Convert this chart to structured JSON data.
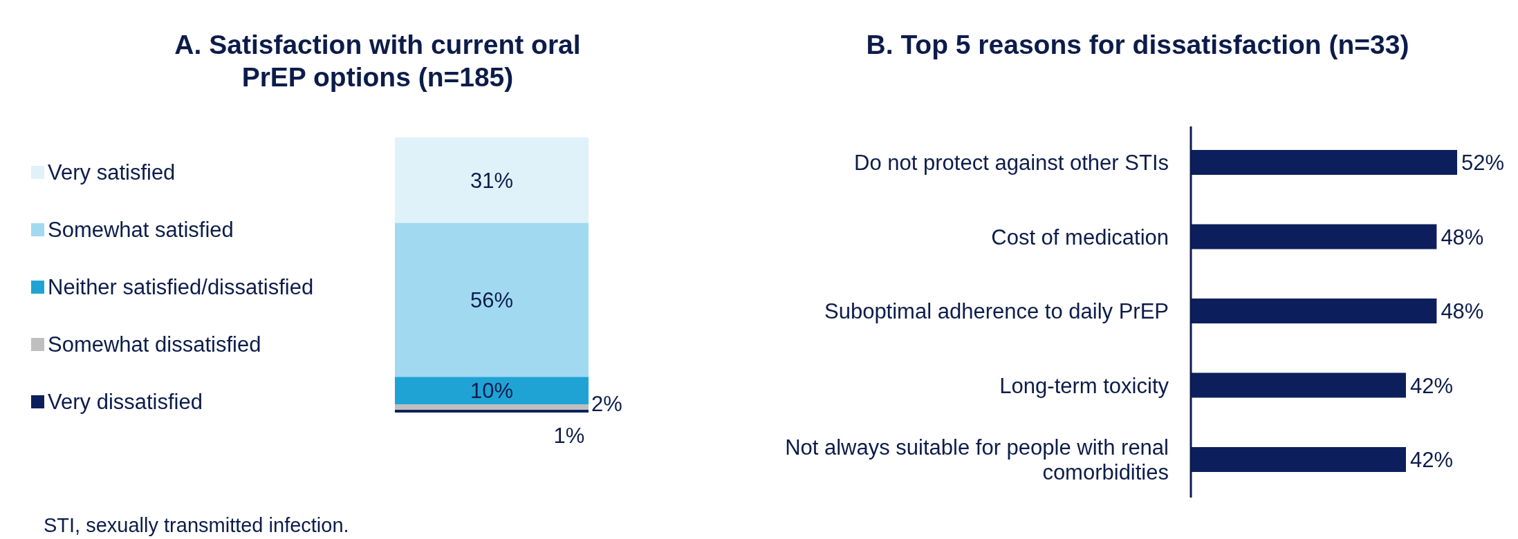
{
  "chart_data": [
    {
      "type": "bar",
      "title": "A. Satisfaction with current oral PrEP options (n=185)",
      "stacked": true,
      "categories": [
        null
      ],
      "legend": "left",
      "annotations": [
        "STI, sexually transmitted infection."
      ],
      "series": [
        {
          "name": "Very dissatisfied",
          "color": "#0c1f5c",
          "values": [
            1
          ],
          "value_labels": [
            "1%"
          ]
        },
        {
          "name": "Somewhat dissatisfied",
          "color": "#bfbfbf",
          "values": [
            2
          ],
          "value_labels": [
            "2%"
          ]
        },
        {
          "name": "Neither satisfied/dissatisfied",
          "color": "#1fa3d5",
          "values": [
            10
          ],
          "value_labels": [
            "10%"
          ]
        },
        {
          "name": "Somewhat satisfied",
          "color": "#a1d9f1",
          "values": [
            56
          ],
          "value_labels": [
            "56%"
          ]
        },
        {
          "name": "Very satisfied",
          "color": "#dff1f9",
          "values": [
            31
          ],
          "value_labels": [
            "31%"
          ]
        }
      ]
    },
    {
      "type": "bar",
      "title": "B. Top 5 reasons for dissatisfaction (n=33)",
      "orientation": "horizontal",
      "color": "#0c1f5c",
      "categories": [
        "Do not protect against other STIs",
        "Cost of medication",
        "Suboptimal adherence to daily PrEP",
        "Long-term toxicity",
        "Not always suitable for people with renal comorbidities"
      ],
      "values": [
        52,
        48,
        48,
        42,
        42
      ],
      "value_labels": [
        "52%",
        "48%",
        "48%",
        "42%",
        "42%"
      ]
    }
  ]
}
